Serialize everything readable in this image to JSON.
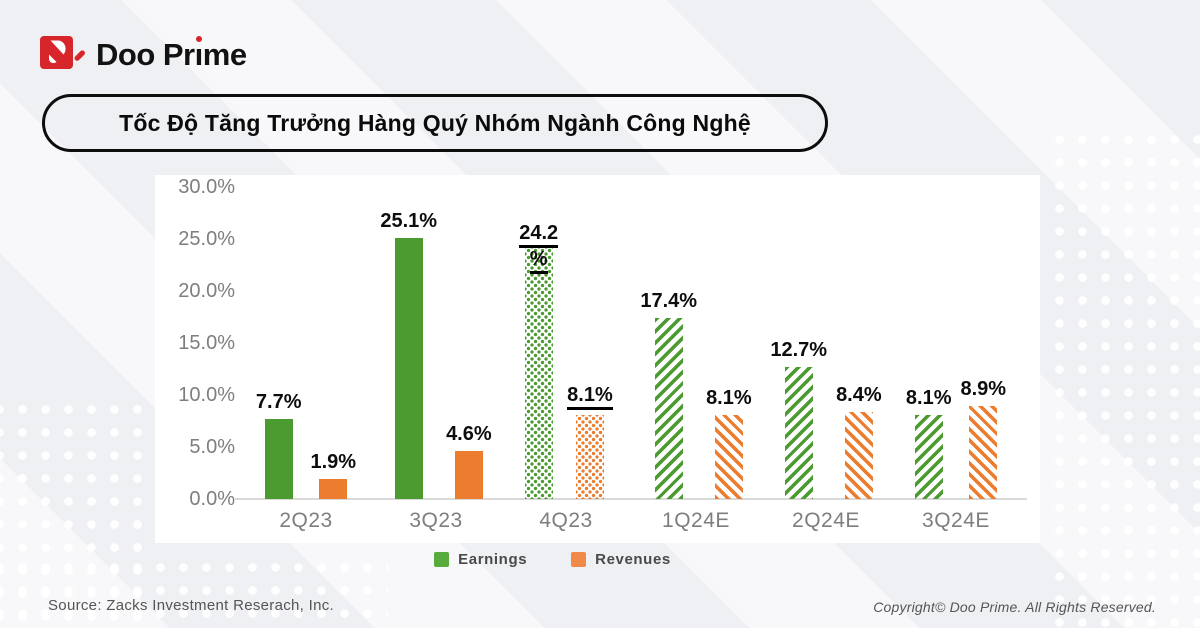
{
  "brand": {
    "name": "Doo Prime",
    "name_pre": "Doo Pr",
    "name_i": "ı",
    "name_post": "me"
  },
  "title": "Tốc Độ Tăng Trưởng Hàng Quý Nhóm Ngành Công Nghệ",
  "chart_data": {
    "type": "bar",
    "title": "Tốc Độ Tăng Trưởng Hàng Quý Nhóm Ngành Công Nghệ",
    "categories": [
      "2Q23",
      "3Q23",
      "4Q23",
      "1Q24E",
      "2Q24E",
      "3Q24E"
    ],
    "series": [
      {
        "name": "Earnings",
        "color": "#4C9B30",
        "values": [
          7.7,
          25.1,
          24.2,
          17.4,
          12.7,
          8.1
        ],
        "labels": [
          [
            "7.7%"
          ],
          [
            "25.1%"
          ],
          [
            "24.2",
            "%"
          ],
          [
            "17.4%"
          ],
          [
            "12.7%"
          ],
          [
            "8.1%"
          ]
        ],
        "underline": [
          false,
          false,
          true,
          false,
          false,
          false
        ],
        "fill_styles": [
          "solid",
          "solid",
          "dotted",
          "striped",
          "striped",
          "striped"
        ]
      },
      {
        "name": "Revenues",
        "color": "#ED7D2E",
        "values": [
          1.9,
          4.6,
          8.1,
          8.1,
          8.4,
          8.9
        ],
        "labels": [
          [
            "1.9%"
          ],
          [
            "4.6%"
          ],
          [
            "8.1%"
          ],
          [
            "8.1%"
          ],
          [
            "8.4%"
          ],
          [
            "8.9%"
          ]
        ],
        "underline": [
          false,
          false,
          true,
          false,
          false,
          false
        ],
        "fill_styles": [
          "solid",
          "solid",
          "dotted",
          "striped",
          "striped",
          "striped"
        ]
      }
    ],
    "ylim": [
      0,
      30
    ],
    "yticks": [
      {
        "value": 30,
        "label": "30.0%"
      },
      {
        "value": 25,
        "label": "25.0%"
      },
      {
        "value": 20,
        "label": "20.0%"
      },
      {
        "value": 15,
        "label": "15.0%"
      },
      {
        "value": 10,
        "label": "10.0%"
      },
      {
        "value": 5,
        "label": "5.0%"
      },
      {
        "value": 0,
        "label": "0.0%"
      }
    ],
    "grid": false,
    "legend_position": "bottom"
  },
  "legend": [
    {
      "label": "Earnings",
      "color": "#58AC3D"
    },
    {
      "label": "Revenues",
      "color": "#EF8A49"
    }
  ],
  "footer": {
    "source": "Source: Zacks Investment Reserach, Inc.",
    "copyright": "Copyright© Doo Prime. All Rights Reserved."
  },
  "colors": {
    "background": "#eff0f3",
    "card": "#ffffff",
    "brand_red": "#d6252b",
    "axis_text": "#7e7e7e",
    "value_text": "#0d0d0d",
    "axis_line": "#d9d9d9",
    "footer_text": "#555555"
  }
}
